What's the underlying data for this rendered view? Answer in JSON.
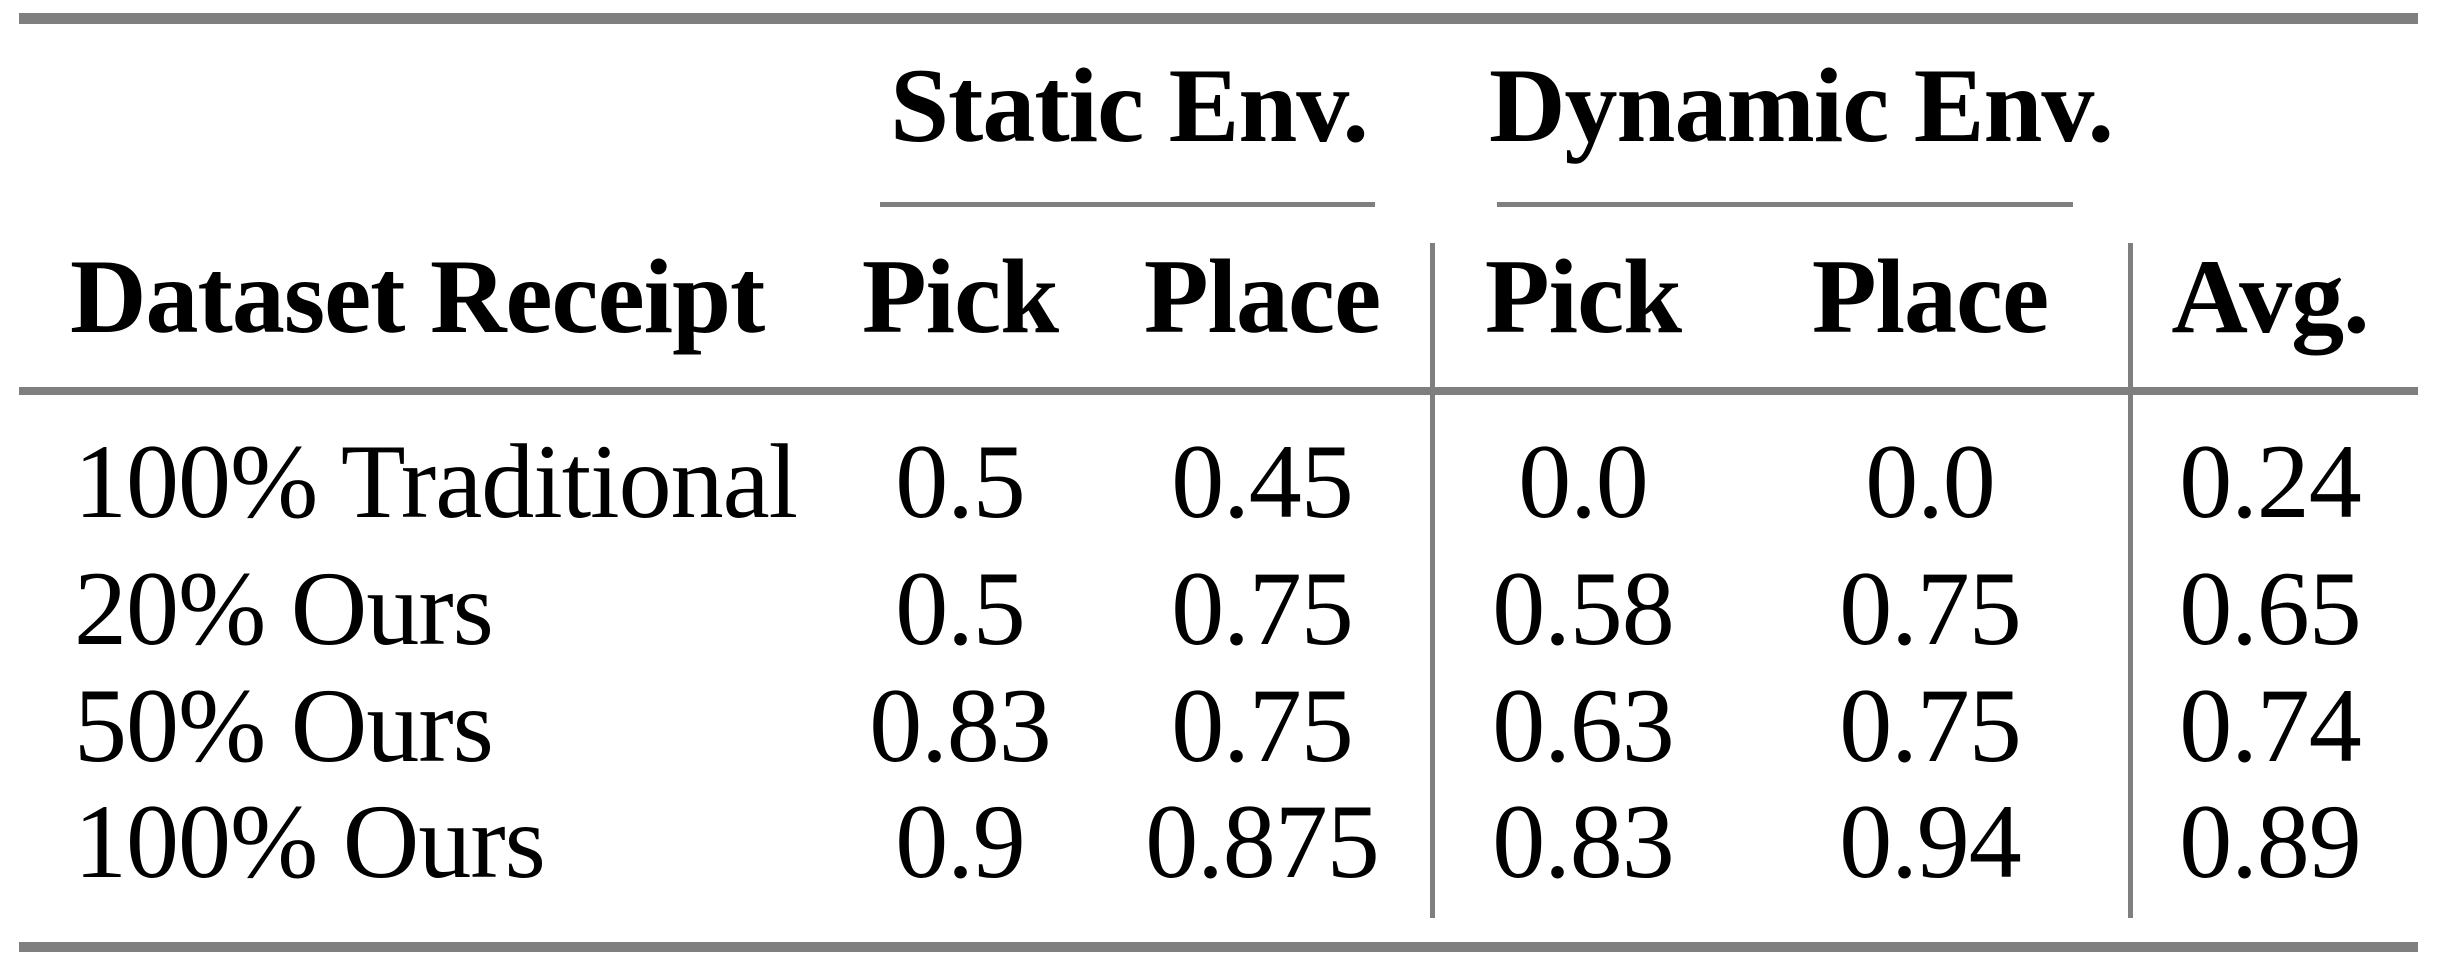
{
  "colors": {
    "background": "#ffffff",
    "text": "#000000",
    "rule_gray": "#7f7f7f"
  },
  "table": {
    "col_groups": {
      "static": "Static Env.",
      "dynamic": "Dynamic Env."
    },
    "headers": {
      "row_label": "Dataset Receipt",
      "static_pick": "Pick",
      "static_place": "Place",
      "dynamic_pick": "Pick",
      "dynamic_place": "Place",
      "avg": "Avg."
    },
    "rows": [
      {
        "label": "100% Traditional",
        "static_pick": "0.5",
        "static_place": "0.45",
        "dynamic_pick": "0.0",
        "dynamic_place": "0.0",
        "avg": "0.24"
      },
      {
        "label": "20% Ours",
        "static_pick": "0.5",
        "static_place": "0.75",
        "dynamic_pick": "0.58",
        "dynamic_place": "0.75",
        "avg": "0.65"
      },
      {
        "label": "50% Ours",
        "static_pick": "0.83",
        "static_place": "0.75",
        "dynamic_pick": "0.63",
        "dynamic_place": "0.75",
        "avg": "0.74"
      },
      {
        "label": "100% Ours",
        "static_pick": "0.9",
        "static_place": "0.875",
        "dynamic_pick": "0.83",
        "dynamic_place": "0.94",
        "avg": "0.89"
      }
    ]
  },
  "chart_data": {
    "type": "table",
    "title": "",
    "column_groups": [
      "Static Env.",
      "Dynamic Env."
    ],
    "columns": [
      "Dataset Receipt",
      "Static Env. Pick",
      "Static Env. Place",
      "Dynamic Env. Pick",
      "Dynamic Env. Place",
      "Avg."
    ],
    "rows": [
      [
        "100% Traditional",
        0.5,
        0.45,
        0.0,
        0.0,
        0.24
      ],
      [
        "20% Ours",
        0.5,
        0.75,
        0.58,
        0.75,
        0.65
      ],
      [
        "50% Ours",
        0.83,
        0.75,
        0.63,
        0.75,
        0.74
      ],
      [
        "100% Ours",
        0.9,
        0.875,
        0.83,
        0.94,
        0.89
      ]
    ]
  }
}
